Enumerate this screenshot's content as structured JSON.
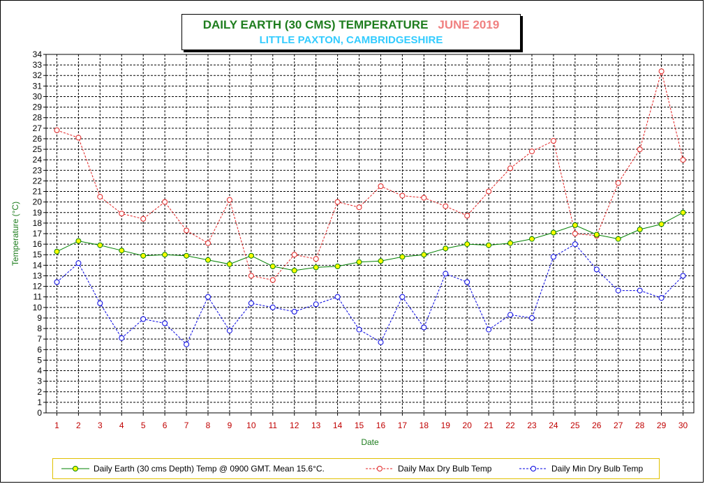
{
  "chart_data": {
    "type": "line",
    "title": "DAILY EARTH (30 CMS) TEMPERATURE",
    "title_month": "JUNE 2019",
    "subtitle": "LITTLE PAXTON, CAMBRIDGESHIRE",
    "xlabel": "Date",
    "ylabel": "Temperature (°C)",
    "x": [
      1,
      2,
      3,
      4,
      5,
      6,
      7,
      8,
      9,
      10,
      11,
      12,
      13,
      14,
      15,
      16,
      17,
      18,
      19,
      20,
      21,
      22,
      23,
      24,
      25,
      26,
      27,
      28,
      29,
      30
    ],
    "ylim": [
      0,
      34
    ],
    "ystep": 1,
    "grid": true,
    "legend_position": "bottom",
    "colors": {
      "title": "#1e7d1e",
      "month": "#f08080",
      "subtitle": "#33ccff",
      "axis_label": "#1e7d1e"
    },
    "series": [
      {
        "name": "Daily Earth (30 cms Depth) Temp @ 0900 GMT. Mean 15.6°C.",
        "color": "#008000",
        "marker_fill": "#ffff00",
        "style": "solid",
        "values": [
          15.3,
          16.3,
          15.9,
          15.4,
          14.9,
          15.0,
          14.9,
          14.5,
          14.1,
          14.9,
          13.9,
          13.5,
          13.8,
          13.9,
          14.3,
          14.4,
          14.8,
          15.0,
          15.6,
          16.0,
          15.9,
          16.1,
          16.5,
          17.1,
          17.8,
          16.9,
          16.5,
          17.4,
          17.9,
          19.0
        ]
      },
      {
        "name": "Daily Max Dry Bulb Temp",
        "color": "#e02020",
        "marker_fill": "#ffffff",
        "style": "dashed",
        "values": [
          26.8,
          26.1,
          20.5,
          18.9,
          18.4,
          20.0,
          17.3,
          16.1,
          20.2,
          13.0,
          12.6,
          15.0,
          14.6,
          20.0,
          19.5,
          21.5,
          20.6,
          20.4,
          19.6,
          18.7,
          21.0,
          23.2,
          24.8,
          25.8,
          17.0,
          16.8,
          21.8,
          25.0,
          32.4,
          24.0
        ]
      },
      {
        "name": "Daily Min Dry Bulb Temp",
        "color": "#0000e0",
        "marker_fill": "#ffffff",
        "style": "dashed",
        "values": [
          12.4,
          14.2,
          10.4,
          7.1,
          8.9,
          8.5,
          6.5,
          11.0,
          7.8,
          10.4,
          10.0,
          9.6,
          10.3,
          11.0,
          7.9,
          6.7,
          11.0,
          8.1,
          13.2,
          12.4,
          7.9,
          9.3,
          9.0,
          14.8,
          16.0,
          13.6,
          11.6,
          11.6,
          10.9,
          13.0
        ]
      }
    ]
  }
}
